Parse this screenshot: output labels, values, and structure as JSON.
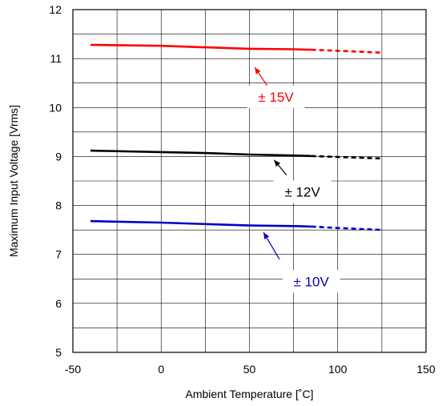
{
  "chart_data": {
    "type": "line",
    "title": "",
    "xlabel": "Ambient Temperature [˚C]",
    "ylabel": "Maximum Input Voltage [Vrms]",
    "xlim": [
      -50,
      150
    ],
    "ylim": [
      5,
      12
    ],
    "x_ticks": [
      "-50",
      "0",
      "50",
      "100",
      "150"
    ],
    "y_ticks": [
      "5",
      "6",
      "7",
      "8",
      "9",
      "10",
      "11",
      "12"
    ],
    "x_minor_step": 25,
    "y_minor_step": 0.5,
    "grid": true,
    "series": [
      {
        "name": "± 15V",
        "color": "#ff0000",
        "solid": {
          "x": [
            -40,
            0,
            25,
            50,
            75,
            85
          ],
          "y": [
            11.28,
            11.26,
            11.23,
            11.2,
            11.19,
            11.18
          ]
        },
        "dashed": {
          "x": [
            85,
            100,
            125
          ],
          "y": [
            11.18,
            11.16,
            11.12
          ]
        },
        "label_point": [
          65,
          10.22
        ],
        "arrow_from": [
          60,
          10.45
        ],
        "arrow_to": [
          53,
          10.82
        ]
      },
      {
        "name": "± 12V",
        "color": "#000000",
        "solid": {
          "x": [
            -40,
            0,
            25,
            50,
            75,
            85
          ],
          "y": [
            9.12,
            9.09,
            9.07,
            9.04,
            9.02,
            9.01
          ]
        },
        "dashed": {
          "x": [
            85,
            100,
            125
          ],
          "y": [
            9.01,
            8.99,
            8.96
          ]
        },
        "label_point": [
          80,
          8.28
        ],
        "arrow_from": [
          71,
          8.62
        ],
        "arrow_to": [
          64,
          8.93
        ]
      },
      {
        "name": "± 10V",
        "color": "#0000c0",
        "solid": {
          "x": [
            -40,
            0,
            25,
            50,
            75,
            85
          ],
          "y": [
            7.68,
            7.65,
            7.62,
            7.59,
            7.58,
            7.57
          ]
        },
        "dashed": {
          "x": [
            85,
            100,
            125
          ],
          "y": [
            7.57,
            7.54,
            7.5
          ]
        },
        "label_point": [
          85,
          6.45
        ],
        "arrow_from": [
          67,
          6.9
        ],
        "arrow_to": [
          58,
          7.45
        ]
      }
    ]
  }
}
